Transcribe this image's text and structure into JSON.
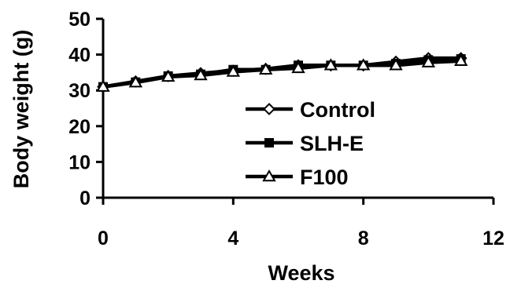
{
  "chart_data": {
    "type": "line",
    "xlabel": "Weeks",
    "ylabel": "Body weight (g)",
    "xlim": [
      0,
      12
    ],
    "ylim": [
      0,
      50
    ],
    "xticks": [
      "0",
      "4",
      "8",
      "12"
    ],
    "yticks": [
      "0",
      "10",
      "20",
      "30",
      "40",
      "50"
    ],
    "grid": false,
    "legend_position": "center-right",
    "x": [
      0,
      1,
      2,
      3,
      4,
      5,
      6,
      7,
      8,
      9,
      10,
      11
    ],
    "series": [
      {
        "name": "Control",
        "marker": "diamond-open",
        "color": "#000000",
        "values": [
          31,
          32.5,
          34,
          34.8,
          35.5,
          36,
          37,
          37,
          37,
          38,
          39,
          39
        ]
      },
      {
        "name": "SLH-E",
        "marker": "square-filled",
        "color": "#000000",
        "values": [
          31,
          32.3,
          34,
          34.5,
          35.8,
          35.8,
          37,
          37,
          37,
          37.5,
          38.5,
          38.8
        ]
      },
      {
        "name": "F100",
        "marker": "triangle-open",
        "color": "#000000",
        "values": [
          31,
          32.2,
          33.8,
          34.2,
          35.2,
          35.8,
          36.2,
          37,
          37,
          37,
          37.8,
          38.2
        ]
      }
    ]
  }
}
